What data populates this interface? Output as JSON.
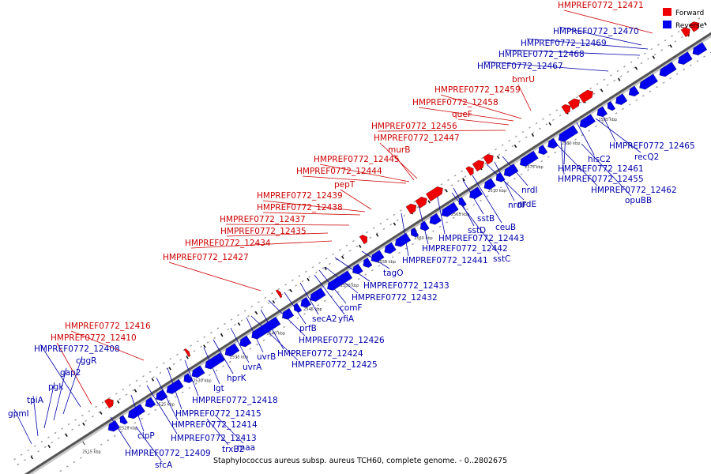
{
  "caption": "Staphylococcus aureus subsp. aureus TCH60, complete genome. - 0..2802675",
  "legend": {
    "forward_label": "Forward",
    "reverse_label": "Reverse",
    "forward_color": "#ee0000",
    "reverse_color": "#0000ee"
  },
  "label_colors": {
    "forward": "#cc0000",
    "reverse": "#0000aa"
  },
  "kbp_ticks": [
    "2515 kbp",
    "2520 kbp",
    "2525 kbp",
    "2530 kbp",
    "2535 kbp",
    "2540 kbp",
    "2545 kbp",
    "2550 kbp",
    "2555 kbp",
    "2560 kbp",
    "2565 kbp",
    "2570 kbp",
    "2575 kbp",
    "2580 kbp",
    "2585 kbp"
  ],
  "genes": [
    {
      "name": "HMPREF0772_12471",
      "strand": "forward"
    },
    {
      "name": "HMPREF0772_12470",
      "strand": "reverse"
    },
    {
      "name": "HMPREF0772_12469",
      "strand": "reverse"
    },
    {
      "name": "HMPREF0772_12468",
      "strand": "reverse"
    },
    {
      "name": "HMPREF0772_12467",
      "strand": "reverse"
    },
    {
      "name": "bmrU",
      "strand": "forward"
    },
    {
      "name": "HMPREF0772_12459",
      "strand": "forward"
    },
    {
      "name": "HMPREF0772_12458",
      "strand": "forward"
    },
    {
      "name": "queF",
      "strand": "forward"
    },
    {
      "name": "HMPREF0772_12456",
      "strand": "forward"
    },
    {
      "name": "HMPREF0772_12447",
      "strand": "forward"
    },
    {
      "name": "murB",
      "strand": "forward"
    },
    {
      "name": "HMPREF0772_12445",
      "strand": "forward"
    },
    {
      "name": "HMPREF0772_12444",
      "strand": "forward"
    },
    {
      "name": "pepT",
      "strand": "forward"
    },
    {
      "name": "HMPREF0772_12439",
      "strand": "forward"
    },
    {
      "name": "HMPREF0772_12438",
      "strand": "forward"
    },
    {
      "name": "HMPREF0772_12437",
      "strand": "forward"
    },
    {
      "name": "HMPREF0772_12435",
      "strand": "forward"
    },
    {
      "name": "HMPREF0772_12434",
      "strand": "forward"
    },
    {
      "name": "HMPREF0772_12427",
      "strand": "forward"
    },
    {
      "name": "HMPREF0772_12416",
      "strand": "forward"
    },
    {
      "name": "HMPREF0772_12410",
      "strand": "forward"
    },
    {
      "name": "HMPREF0772_12408",
      "strand": "reverse"
    },
    {
      "name": "cggR",
      "strand": "reverse"
    },
    {
      "name": "gap2",
      "strand": "reverse"
    },
    {
      "name": "pgk",
      "strand": "reverse"
    },
    {
      "name": "tpiA",
      "strand": "reverse"
    },
    {
      "name": "gpmI",
      "strand": "reverse"
    },
    {
      "name": "HMPREF0772_12465",
      "strand": "reverse"
    },
    {
      "name": "recQ2",
      "strand": "reverse"
    },
    {
      "name": "hisC2",
      "strand": "reverse"
    },
    {
      "name": "HMPREF0772_12461",
      "strand": "reverse"
    },
    {
      "name": "HMPREF0772_12455",
      "strand": "reverse"
    },
    {
      "name": "HMPREF0772_12462",
      "strand": "reverse"
    },
    {
      "name": "opuBB",
      "strand": "reverse"
    },
    {
      "name": "nrdI",
      "strand": "reverse"
    },
    {
      "name": "nrdF",
      "strand": "reverse"
    },
    {
      "name": "nrdE",
      "strand": "reverse"
    },
    {
      "name": "ceuB",
      "strand": "reverse"
    },
    {
      "name": "sstB",
      "strand": "reverse"
    },
    {
      "name": "sstD",
      "strand": "reverse"
    },
    {
      "name": "HMPREF0772_12443",
      "strand": "reverse"
    },
    {
      "name": "HMPREF0772_12442",
      "strand": "reverse"
    },
    {
      "name": "HMPREF0772_12441",
      "strand": "reverse"
    },
    {
      "name": "sstC",
      "strand": "reverse"
    },
    {
      "name": "tagO",
      "strand": "reverse"
    },
    {
      "name": "HMPREF0772_12433",
      "strand": "reverse"
    },
    {
      "name": "HMPREF0772_12432",
      "strand": "reverse"
    },
    {
      "name": "comF",
      "strand": "reverse"
    },
    {
      "name": "yfiA",
      "strand": "reverse"
    },
    {
      "name": "secA2",
      "strand": "reverse"
    },
    {
      "name": "prfB",
      "strand": "reverse"
    },
    {
      "name": "HMPREF0772_12426",
      "strand": "reverse"
    },
    {
      "name": "HMPREF0772_12424",
      "strand": "reverse"
    },
    {
      "name": "HMPREF0772_12425",
      "strand": "reverse"
    },
    {
      "name": "uvrB",
      "strand": "reverse"
    },
    {
      "name": "uvrA",
      "strand": "reverse"
    },
    {
      "name": "hprK",
      "strand": "reverse"
    },
    {
      "name": "lgt",
      "strand": "reverse"
    },
    {
      "name": "HMPREF0772_12418",
      "strand": "reverse"
    },
    {
      "name": "HMPREF0772_12415",
      "strand": "reverse"
    },
    {
      "name": "HMPREF0772_12414",
      "strand": "reverse"
    },
    {
      "name": "HMPREF0772_12413",
      "strand": "reverse"
    },
    {
      "name": "maa",
      "strand": "reverse"
    },
    {
      "name": "trxB2",
      "strand": "reverse"
    },
    {
      "name": "clpP",
      "strand": "reverse"
    },
    {
      "name": "HMPREF0772_12409",
      "strand": "reverse"
    },
    {
      "name": "sfcA",
      "strand": "reverse"
    }
  ]
}
